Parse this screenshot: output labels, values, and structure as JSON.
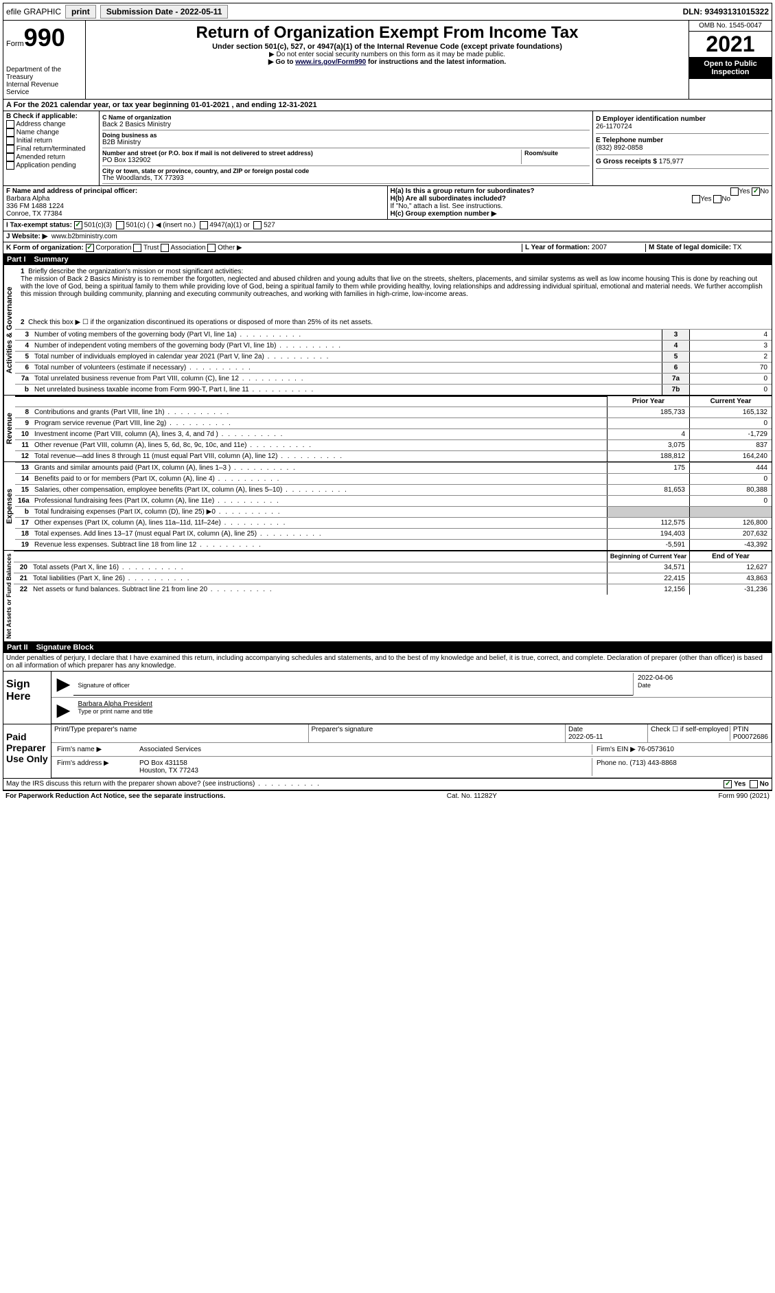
{
  "topbar": {
    "efile": "efile GRAPHIC",
    "print": "print",
    "submission": "Submission Date - 2022-05-11",
    "dln": "DLN: 93493131015322"
  },
  "header": {
    "form": "Form",
    "form_num": "990",
    "title": "Return of Organization Exempt From Income Tax",
    "sub": "Under section 501(c), 527, or 4947(a)(1) of the Internal Revenue Code (except private foundations)",
    "note1": "▶ Do not enter social security numbers on this form as it may be made public.",
    "note2_pre": "▶ Go to ",
    "note2_link": "www.irs.gov/Form990",
    "note2_post": " for instructions and the latest information.",
    "dept": "Department of the Treasury",
    "irs": "Internal Revenue Service",
    "omb": "OMB No. 1545-0047",
    "year": "2021",
    "inspect": "Open to Public Inspection"
  },
  "period": "A For the 2021 calendar year, or tax year beginning 01-01-2021   , and ending 12-31-2021",
  "boxB": {
    "label": "B Check if applicable:",
    "items": [
      "Address change",
      "Name change",
      "Initial return",
      "Final return/terminated",
      "Amended return",
      "Application pending"
    ]
  },
  "boxC": {
    "name_lbl": "C Name of organization",
    "name": "Back 2 Basics Ministry",
    "dba_lbl": "Doing business as",
    "dba": "B2B Ministry",
    "addr_lbl": "Number and street (or P.O. box if mail is not delivered to street address)",
    "room_lbl": "Room/suite",
    "addr": "PO Box 132902",
    "city_lbl": "City or town, state or province, country, and ZIP or foreign postal code",
    "city": "The Woodlands, TX  77393"
  },
  "boxD": {
    "lbl": "D Employer identification number",
    "val": "26-1170724"
  },
  "boxE": {
    "lbl": "E Telephone number",
    "val": "(832) 892-0858"
  },
  "boxG": {
    "lbl": "G Gross receipts $",
    "val": "175,977"
  },
  "boxF": {
    "lbl": "F  Name and address of principal officer:",
    "name": "Barbara Alpha",
    "addr1": "336 FM 1488 1224",
    "addr2": "Conroe, TX  77384"
  },
  "boxH": {
    "a_lbl": "H(a)  Is this a group return for subordinates?",
    "b_lbl": "H(b)  Are all subordinates included?",
    "b_note": "If \"No,\" attach a list. See instructions.",
    "c_lbl": "H(c)  Group exemption number ▶"
  },
  "boxI": {
    "lbl": "I   Tax-exempt status:",
    "opts": [
      "501(c)(3)",
      "501(c) (  ) ◀ (insert no.)",
      "4947(a)(1) or",
      "527"
    ]
  },
  "boxJ": {
    "lbl": "J   Website: ▶",
    "val": "www.b2bministry.com"
  },
  "boxK": {
    "lbl": "K Form of organization:",
    "opts": [
      "Corporation",
      "Trust",
      "Association",
      "Other ▶"
    ]
  },
  "boxL": {
    "lbl": "L Year of formation:",
    "val": "2007"
  },
  "boxM": {
    "lbl": "M State of legal domicile:",
    "val": "TX"
  },
  "part1": {
    "label": "Part I",
    "title": "Summary",
    "side_gov": "Activities & Governance",
    "side_rev": "Revenue",
    "side_exp": "Expenses",
    "side_net": "Net Assets or Fund Balances",
    "line1_lbl": "Briefly describe the organization's mission or most significant activities:",
    "mission": "The mission of Back 2 Basics Ministry is to remember the forgotten, neglected and abused children and young adults that live on the streets, shelters, placements, and similar systems as well as low income housing This is done by reaching out with the love of God, being a spiritual family to them while providing love of God, being a spiritual family to them while providing healthy, loving relationships and addressing individual spiritual, emotional and material needs. We further accomplish this mission through building community, planning and executing community outreaches, and working with families in high-crime, low-income areas.",
    "line2": "Check this box ▶ ☐  if the organization discontinued its operations or disposed of more than 25% of its net assets.",
    "rows_gov": [
      {
        "n": "3",
        "d": "Number of voting members of the governing body (Part VI, line 1a)",
        "b": "3",
        "v": "4"
      },
      {
        "n": "4",
        "d": "Number of independent voting members of the governing body (Part VI, line 1b)",
        "b": "4",
        "v": "3"
      },
      {
        "n": "5",
        "d": "Total number of individuals employed in calendar year 2021 (Part V, line 2a)",
        "b": "5",
        "v": "2"
      },
      {
        "n": "6",
        "d": "Total number of volunteers (estimate if necessary)",
        "b": "6",
        "v": "70"
      },
      {
        "n": "7a",
        "d": "Total unrelated business revenue from Part VIII, column (C), line 12",
        "b": "7a",
        "v": "0"
      },
      {
        "n": "b",
        "d": "Net unrelated business taxable income from Form 990-T, Part I, line 11",
        "b": "7b",
        "v": "0"
      }
    ],
    "prior": "Prior Year",
    "current": "Current Year",
    "rows_rev": [
      {
        "n": "8",
        "d": "Contributions and grants (Part VIII, line 1h)",
        "p": "185,733",
        "c": "165,132"
      },
      {
        "n": "9",
        "d": "Program service revenue (Part VIII, line 2g)",
        "p": "",
        "c": "0"
      },
      {
        "n": "10",
        "d": "Investment income (Part VIII, column (A), lines 3, 4, and 7d )",
        "p": "4",
        "c": "-1,729"
      },
      {
        "n": "11",
        "d": "Other revenue (Part VIII, column (A), lines 5, 6d, 8c, 9c, 10c, and 11e)",
        "p": "3,075",
        "c": "837"
      },
      {
        "n": "12",
        "d": "Total revenue—add lines 8 through 11 (must equal Part VIII, column (A), line 12)",
        "p": "188,812",
        "c": "164,240"
      }
    ],
    "rows_exp": [
      {
        "n": "13",
        "d": "Grants and similar amounts paid (Part IX, column (A), lines 1–3 )",
        "p": "175",
        "c": "444"
      },
      {
        "n": "14",
        "d": "Benefits paid to or for members (Part IX, column (A), line 4)",
        "p": "",
        "c": "0"
      },
      {
        "n": "15",
        "d": "Salaries, other compensation, employee benefits (Part IX, column (A), lines 5–10)",
        "p": "81,653",
        "c": "80,388"
      },
      {
        "n": "16a",
        "d": "Professional fundraising fees (Part IX, column (A), line 11e)",
        "p": "",
        "c": "0"
      },
      {
        "n": "b",
        "d": "Total fundraising expenses (Part IX, column (D), line 25) ▶0",
        "p": "shaded",
        "c": "shaded"
      },
      {
        "n": "17",
        "d": "Other expenses (Part IX, column (A), lines 11a–11d, 11f–24e)",
        "p": "112,575",
        "c": "126,800"
      },
      {
        "n": "18",
        "d": "Total expenses. Add lines 13–17 (must equal Part IX, column (A), line 25)",
        "p": "194,403",
        "c": "207,632"
      },
      {
        "n": "19",
        "d": "Revenue less expenses. Subtract line 18 from line 12",
        "p": "-5,591",
        "c": "-43,392"
      }
    ],
    "begin": "Beginning of Current Year",
    "end": "End of Year",
    "rows_net": [
      {
        "n": "20",
        "d": "Total assets (Part X, line 16)",
        "p": "34,571",
        "c": "12,627"
      },
      {
        "n": "21",
        "d": "Total liabilities (Part X, line 26)",
        "p": "22,415",
        "c": "43,863"
      },
      {
        "n": "22",
        "d": "Net assets or fund balances. Subtract line 21 from line 20",
        "p": "12,156",
        "c": "-31,236"
      }
    ]
  },
  "part2": {
    "label": "Part II",
    "title": "Signature Block",
    "decl": "Under penalties of perjury, I declare that I have examined this return, including accompanying schedules and statements, and to the best of my knowledge and belief, it is true, correct, and complete. Declaration of preparer (other than officer) is based on all information of which preparer has any knowledge.",
    "sign_here": "Sign Here",
    "sig_officer": "Signature of officer",
    "sig_date": "2022-04-06",
    "date_lbl": "Date",
    "officer_name": "Barbara Alpha  President",
    "officer_lbl": "Type or print name and title",
    "paid": "Paid Preparer Use Only",
    "prep_name_lbl": "Print/Type preparer's name",
    "prep_sig_lbl": "Preparer's signature",
    "prep_date_lbl": "Date",
    "prep_date": "2022-05-11",
    "self_emp": "Check ☐ if self-employed",
    "ptin_lbl": "PTIN",
    "ptin": "P00072686",
    "firm_name_lbl": "Firm's name    ▶",
    "firm_name": "Associated Services",
    "firm_ein_lbl": "Firm's EIN ▶",
    "firm_ein": "76-0573610",
    "firm_addr_lbl": "Firm's address ▶",
    "firm_addr": "PO Box 431158",
    "firm_city": "Houston, TX  77243",
    "phone_lbl": "Phone no.",
    "phone": "(713) 443-8868",
    "discuss": "May the IRS discuss this return with the preparer shown above? (see instructions)",
    "yes": "Yes",
    "no": "No"
  },
  "footer": {
    "pra": "For Paperwork Reduction Act Notice, see the separate instructions.",
    "cat": "Cat. No. 11282Y",
    "form": "Form 990 (2021)"
  }
}
